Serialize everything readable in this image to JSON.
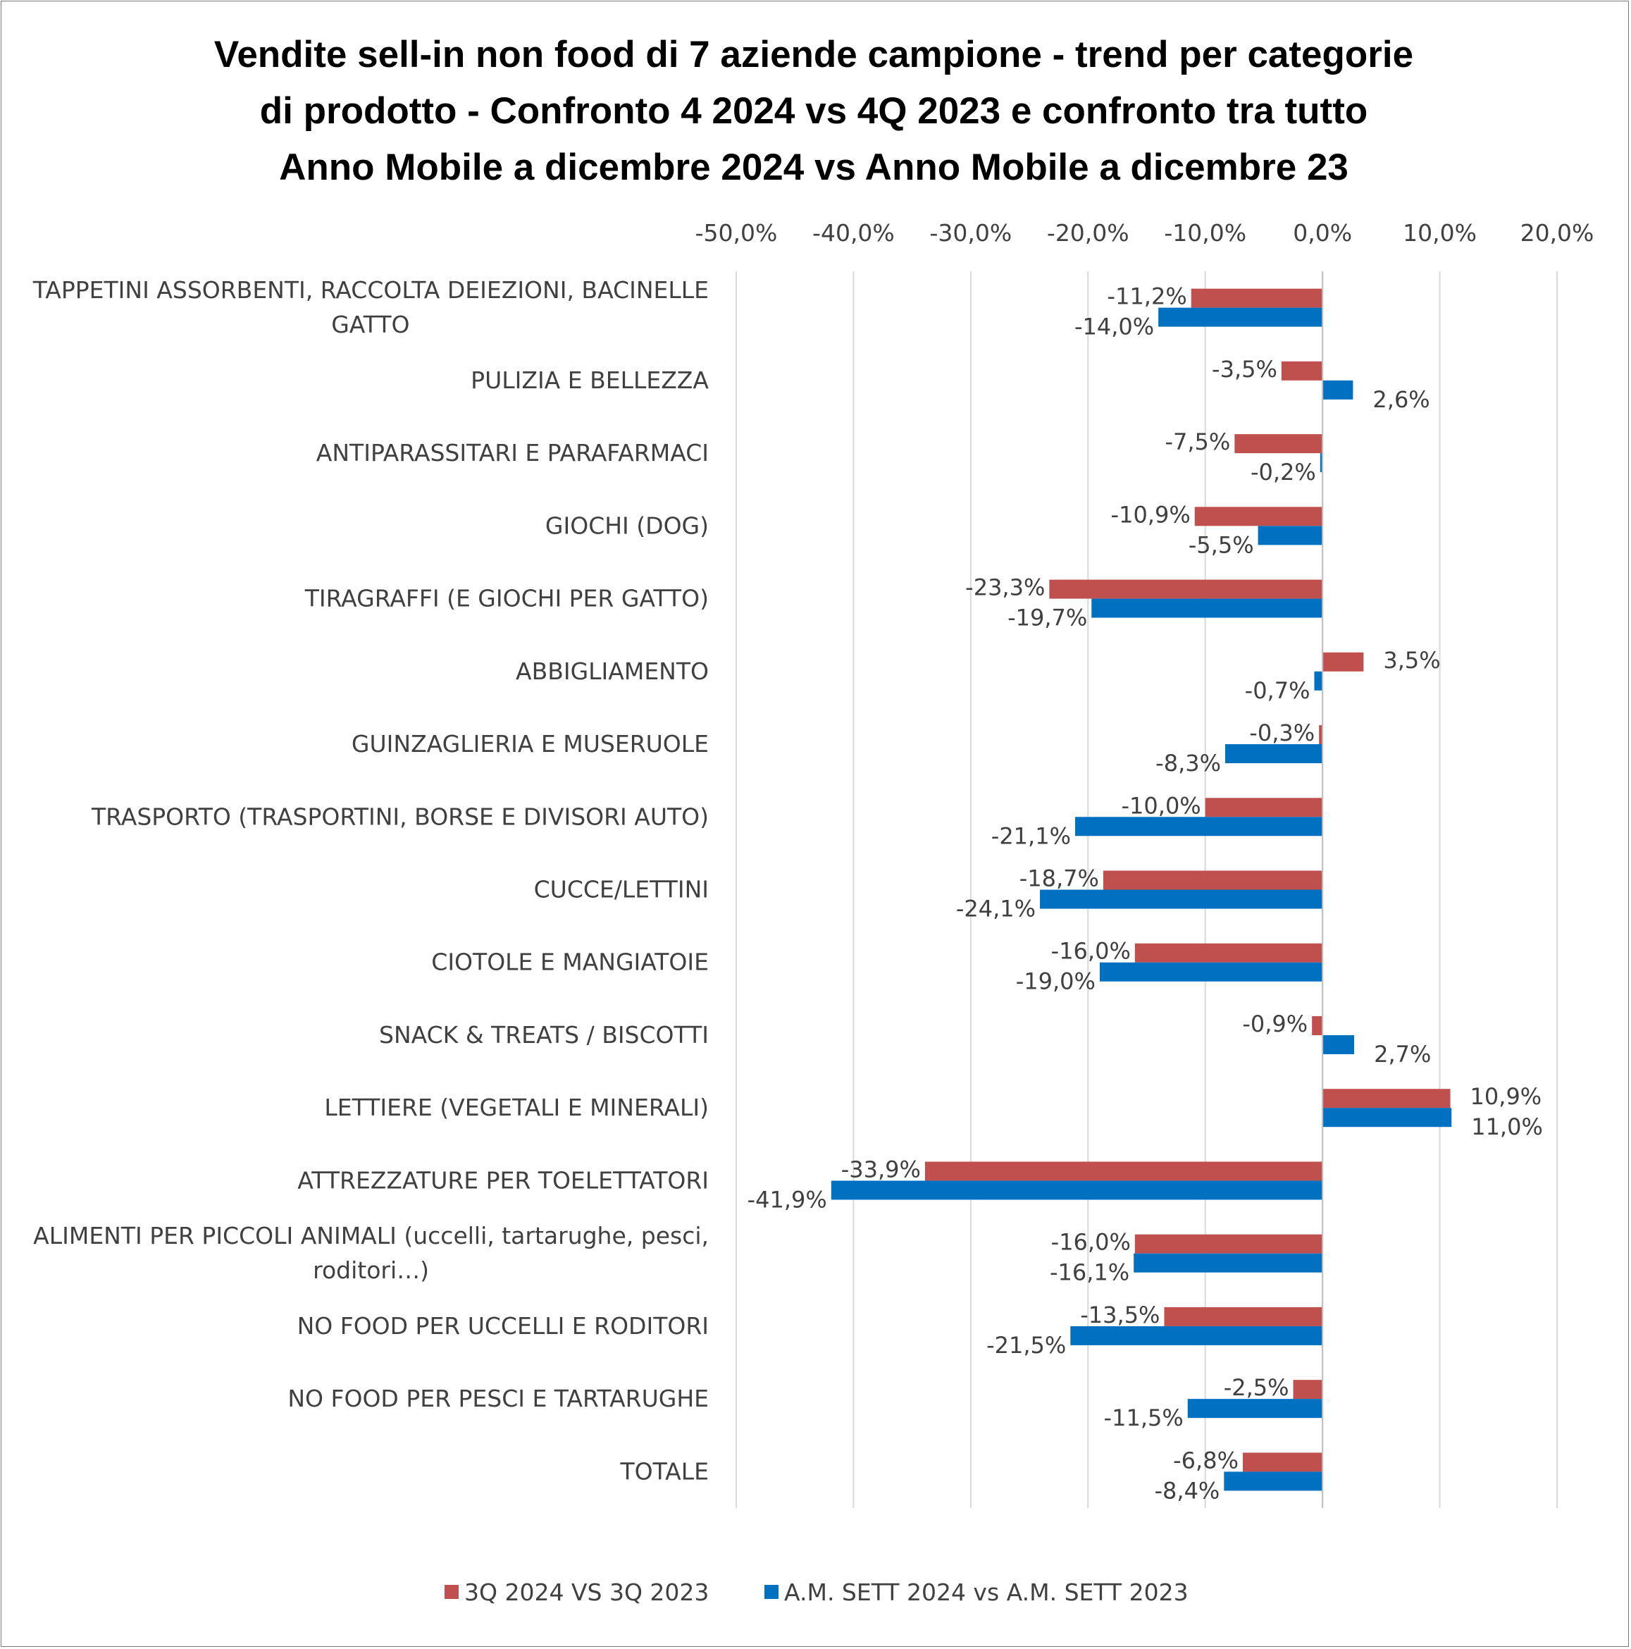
{
  "chart_data": {
    "type": "bar",
    "orientation": "horizontal",
    "title": [
      "Vendite sell-in non food di 7 aziende campione - trend per categorie",
      "di prodotto - Confronto 4 2024 vs 4Q 2023 e confronto tra tutto",
      "Anno Mobile a dicembre 2024 vs Anno Mobile a dicembre 23"
    ],
    "xlim": [
      -50,
      20
    ],
    "x_ticks": [
      -50,
      -40,
      -30,
      -20,
      -10,
      0,
      10,
      20
    ],
    "x_tick_labels": [
      "-50,0%",
      "-40,0%",
      "-30,0%",
      "-20,0%",
      "-10,0%",
      "0,0%",
      "10,0%",
      "20,0%"
    ],
    "axis_position": "top",
    "grid": true,
    "legend_position": "bottom",
    "categories": [
      [
        "TAPPETINI ASSORBENTI, RACCOLTA DEIEZIONI, BACINELLE",
        "GATTO"
      ],
      [
        "PULIZIA E BELLEZZA"
      ],
      [
        "ANTIPARASSITARI E PARAFARMACI"
      ],
      [
        "GIOCHI (DOG)"
      ],
      [
        "TIRAGRAFFI (E GIOCHI PER GATTO)"
      ],
      [
        "ABBIGLIAMENTO"
      ],
      [
        "GUINZAGLIERIA E MUSERUOLE"
      ],
      [
        "TRASPORTO (TRASPORTINI,  BORSE E DIVISORI AUTO)"
      ],
      [
        "CUCCE/LETTINI"
      ],
      [
        "CIOTOLE E MANGIATOIE"
      ],
      [
        "SNACK & TREATS / BISCOTTI"
      ],
      [
        "LETTIERE (VEGETALI E MINERALI)"
      ],
      [
        "ATTREZZATURE PER TOELETTATORI"
      ],
      [
        "ALIMENTI PER PICCOLI ANIMALI (uccelli, tartarughe, pesci,",
        "roditori…)"
      ],
      [
        "NO FOOD PER UCCELLI E RODITORI"
      ],
      [
        "NO FOOD PER PESCI E TARTARUGHE"
      ],
      [
        "TOTALE"
      ]
    ],
    "series": [
      {
        "name": "3Q 2024 VS 3Q 2023",
        "color": "#C0504D",
        "values": [
          -11.2,
          -3.5,
          -7.5,
          -10.9,
          -23.3,
          3.5,
          -0.3,
          -10.0,
          -18.7,
          -16.0,
          -0.9,
          10.9,
          -33.9,
          -16.0,
          -13.5,
          -2.5,
          -6.8
        ],
        "labels": [
          "-11,2%",
          "-3,5%",
          "-7,5%",
          "-10,9%",
          "-23,3%",
          "3,5%",
          "-0,3%",
          "-10,0%",
          "-18,7%",
          "-16,0%",
          "-0,9%",
          "10,9%",
          "-33,9%",
          "-16,0%",
          "-13,5%",
          "-2,5%",
          "-6,8%"
        ]
      },
      {
        "name": "A.M. SETT  2024 vs A.M. SETT 2023",
        "color": "#0070C0",
        "values": [
          -14.0,
          2.6,
          -0.2,
          -5.5,
          -19.7,
          -0.7,
          -8.3,
          -21.1,
          -24.1,
          -19.0,
          2.7,
          11.0,
          -41.9,
          -16.1,
          -21.5,
          -11.5,
          -8.4
        ],
        "labels": [
          "-14,0%",
          "2,6%",
          "-0,2%",
          "-5,5%",
          "-19,7%",
          "-0,7%",
          "-8,3%",
          "-21,1%",
          "-24,1%",
          "-19,0%",
          "2,7%",
          "11,0%",
          "-41,9%",
          "-16,1%",
          "-21,5%",
          "-11,5%",
          "-8,4%"
        ]
      }
    ]
  },
  "colors": {
    "gridline": "#D9D9D9",
    "axis_line": "#BFBFBF",
    "text": "#404040",
    "title": "#000000"
  }
}
